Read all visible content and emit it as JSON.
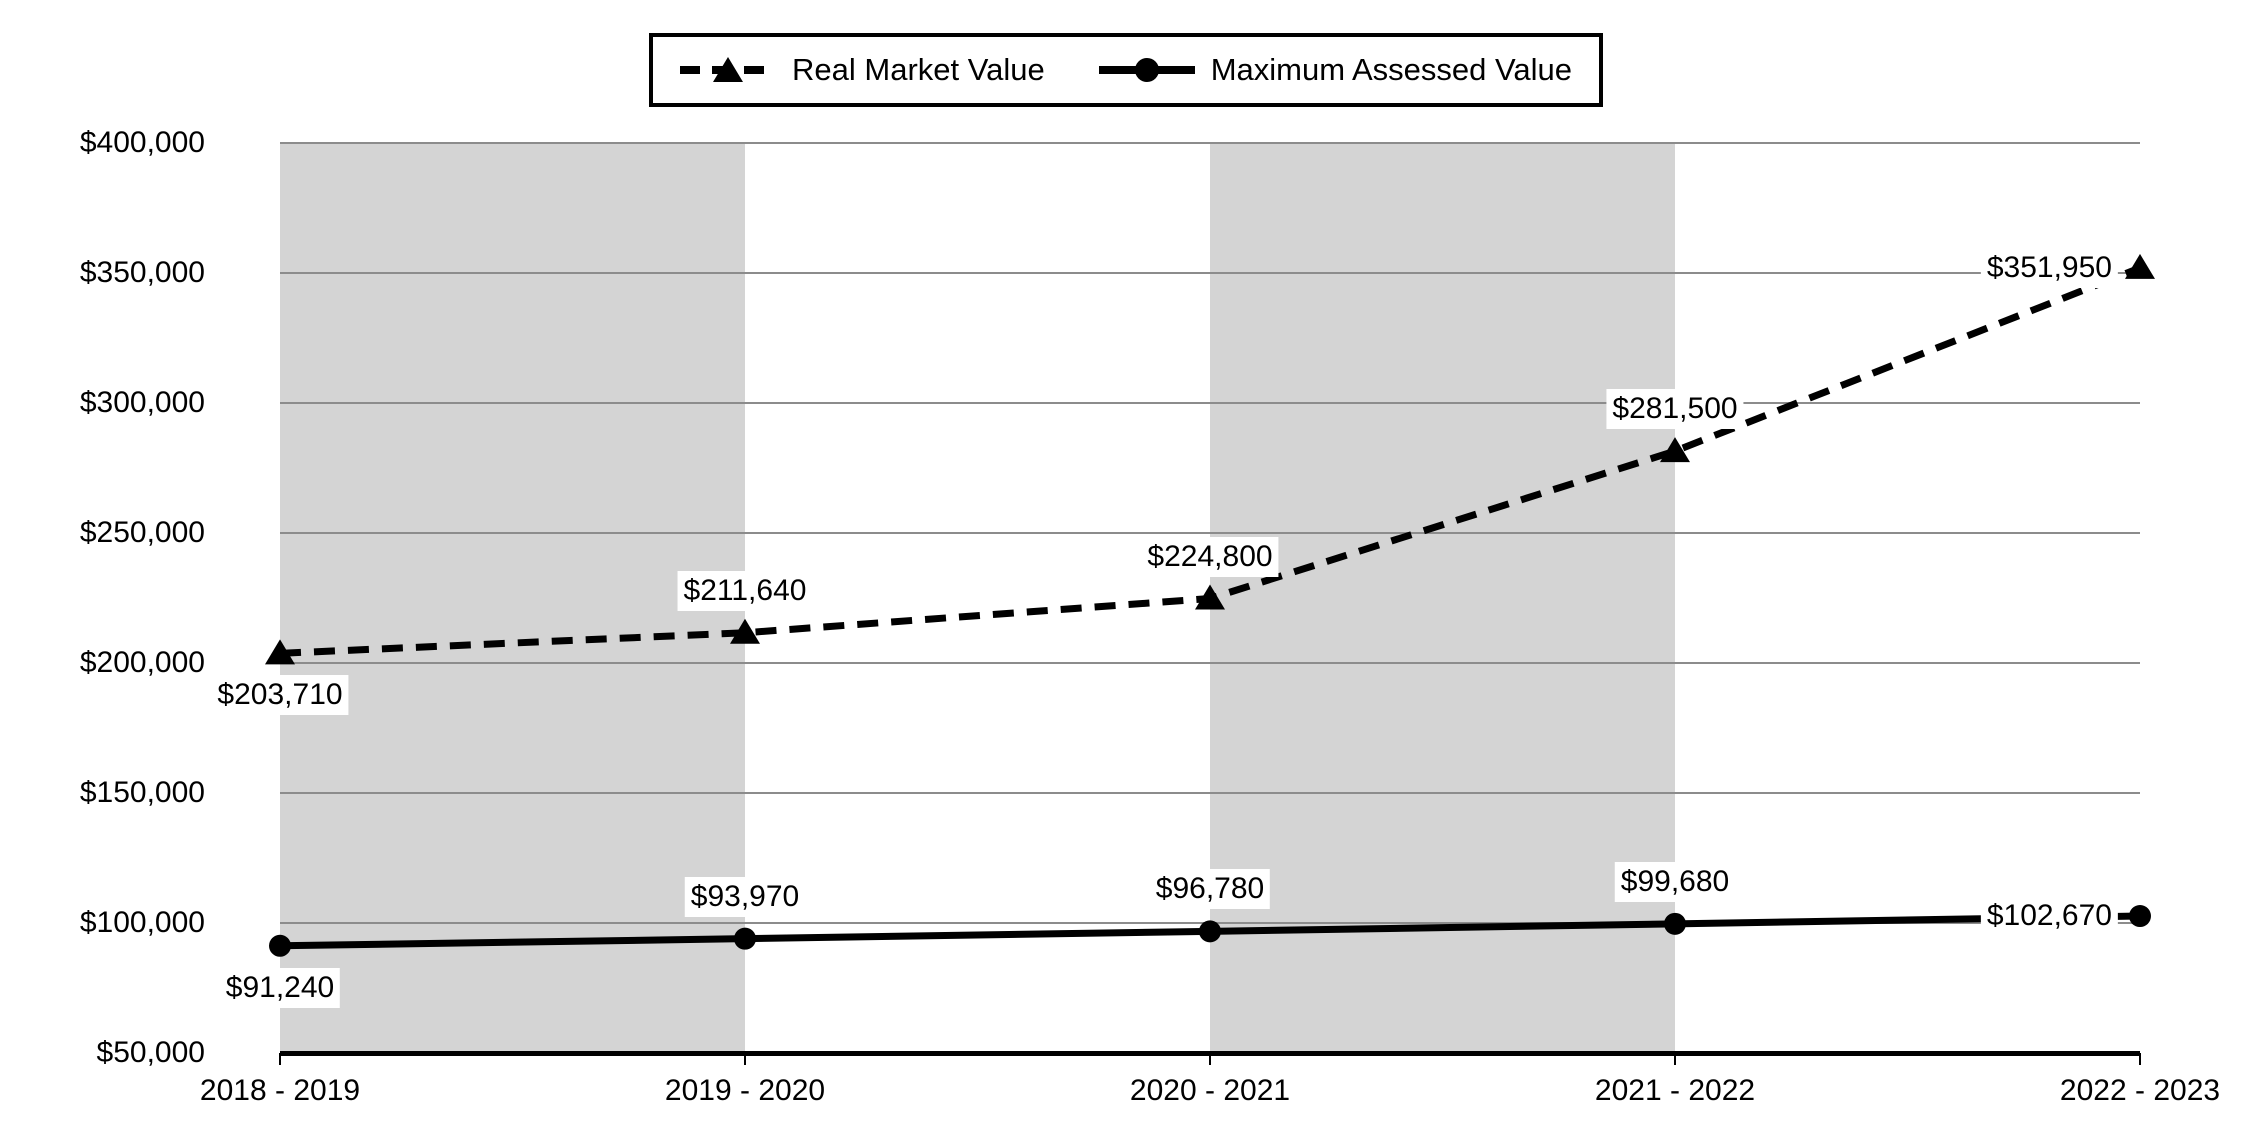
{
  "legend": {
    "items": [
      {
        "label": "Real Market Value"
      },
      {
        "label": "Maximum Assessed Value"
      }
    ]
  },
  "chart_data": {
    "type": "line",
    "categories": [
      "2018 - 2019",
      "2019 - 2020",
      "2020 - 2021",
      "2021 - 2022",
      "2022 - 2023"
    ],
    "series": [
      {
        "name": "Real Market Value",
        "line_style": "dashed",
        "marker": "triangle",
        "values": [
          203710,
          211640,
          224800,
          281500,
          351950
        ],
        "labels": [
          "$203,710",
          "$211,640",
          "$224,800",
          "$281,500",
          "$351,950"
        ]
      },
      {
        "name": "Maximum Assessed Value",
        "line_style": "solid",
        "marker": "circle",
        "values": [
          91240,
          93970,
          96780,
          99680,
          102670
        ],
        "labels": [
          "$91,240",
          "$93,970",
          "$96,780",
          "$99,680",
          "$102,670"
        ]
      }
    ],
    "title": "",
    "xlabel": "",
    "ylabel": "",
    "ylim": [
      50000,
      400000
    ],
    "ytick_step": 50000,
    "yticks": [
      "$400,000",
      "$350,000",
      "$300,000",
      "$250,000",
      "$200,000",
      "$150,000",
      "$100,000",
      "$50,000"
    ],
    "grid": true,
    "legend_position": "top-center",
    "plot_bands": [
      {
        "from_category": 0,
        "to_category": 1
      },
      {
        "from_category": 2,
        "to_category": 3
      }
    ],
    "colors": {
      "series": "#000000",
      "band": "#d4d4d4",
      "gridline": "#8c8c8c",
      "background": "#ffffff",
      "label_background": "#ffffff"
    }
  }
}
